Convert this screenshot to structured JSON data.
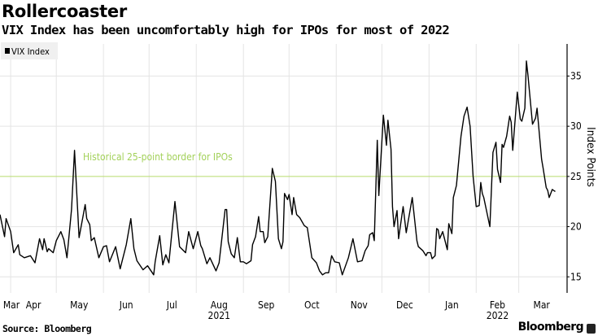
{
  "title": "Rollercoaster",
  "subtitle": "VIX Index has been uncomfortably high for IPOs for most of 2022",
  "source": "Source: Bloomberg",
  "brand": "Bloomberg",
  "colors": {
    "line": "#000000",
    "threshold": "#b8dc6c",
    "annotation": "#a3d15a",
    "grid": "#e4e4e4",
    "legend_bg": "#f0f0f0"
  },
  "chart_data": {
    "type": "line",
    "legend": {
      "entries": [
        "VIX Index"
      ],
      "placement": "top-left"
    },
    "ylabel": "Index Points",
    "yaxis_side": "right",
    "ylim": [
      13.4,
      38.2
    ],
    "yticks": [
      15,
      20,
      25,
      30,
      35
    ],
    "xlim": [
      "2021-03-25",
      "2022-03-29"
    ],
    "grid": true,
    "xtick_labels": [
      {
        "label": "Mar",
        "month": "2021-03"
      },
      {
        "label": "Apr",
        "month": "2021-04"
      },
      {
        "label": "May",
        "month": "2021-05"
      },
      {
        "label": "Jun",
        "month": "2021-06"
      },
      {
        "label": "Jul",
        "month": "2021-07"
      },
      {
        "label": "Aug",
        "month": "2021-08",
        "year": "2021"
      },
      {
        "label": "Sep",
        "month": "2021-09"
      },
      {
        "label": "Oct",
        "month": "2021-10"
      },
      {
        "label": "Nov",
        "month": "2021-11"
      },
      {
        "label": "Dec",
        "month": "2021-12"
      },
      {
        "label": "Jan",
        "month": "2022-01"
      },
      {
        "label": "Feb",
        "month": "2022-02",
        "year": "2022"
      },
      {
        "label": "Mar",
        "month": "2022-03"
      }
    ],
    "annotations": [
      {
        "text": "Historical 25-point border for IPOs",
        "y": 25,
        "type": "hline"
      }
    ],
    "series": [
      {
        "name": "VIX Index",
        "points": [
          [
            "2021-03-25",
            21.2
          ],
          [
            "2021-03-28",
            19.0
          ],
          [
            "2021-03-29",
            20.8
          ],
          [
            "2021-04-01",
            19.5
          ],
          [
            "2021-04-03",
            17.4
          ],
          [
            "2021-04-06",
            18.2
          ],
          [
            "2021-04-07",
            17.2
          ],
          [
            "2021-04-10",
            16.9
          ],
          [
            "2021-04-14",
            17.1
          ],
          [
            "2021-04-17",
            16.4
          ],
          [
            "2021-04-20",
            18.8
          ],
          [
            "2021-04-22",
            17.7
          ],
          [
            "2021-04-23",
            18.8
          ],
          [
            "2021-04-25",
            17.5
          ],
          [
            "2021-04-26",
            17.8
          ],
          [
            "2021-04-29",
            17.4
          ],
          [
            "2021-05-01",
            18.6
          ],
          [
            "2021-05-04",
            19.5
          ],
          [
            "2021-05-06",
            18.7
          ],
          [
            "2021-05-08",
            16.9
          ],
          [
            "2021-05-11",
            21.7
          ],
          [
            "2021-05-13",
            27.6
          ],
          [
            "2021-05-16",
            18.9
          ],
          [
            "2021-05-20",
            22.2
          ],
          [
            "2021-05-21",
            20.8
          ],
          [
            "2021-05-23",
            20.2
          ],
          [
            "2021-05-24",
            18.6
          ],
          [
            "2021-05-26",
            18.9
          ],
          [
            "2021-05-29",
            16.9
          ],
          [
            "2021-06-01",
            18.0
          ],
          [
            "2021-06-03",
            18.1
          ],
          [
            "2021-06-05",
            16.5
          ],
          [
            "2021-06-09",
            18.0
          ],
          [
            "2021-06-12",
            15.8
          ],
          [
            "2021-06-16",
            18.2
          ],
          [
            "2021-06-19",
            20.8
          ],
          [
            "2021-06-21",
            17.8
          ],
          [
            "2021-06-23",
            16.6
          ],
          [
            "2021-06-27",
            15.7
          ],
          [
            "2021-06-30",
            16.1
          ],
          [
            "2021-07-04",
            15.2
          ],
          [
            "2021-07-05",
            16.5
          ],
          [
            "2021-07-08",
            19.1
          ],
          [
            "2021-07-10",
            16.2
          ],
          [
            "2021-07-12",
            17.2
          ],
          [
            "2021-07-14",
            16.4
          ],
          [
            "2021-07-18",
            22.5
          ],
          [
            "2021-07-21",
            18.0
          ],
          [
            "2021-07-25",
            17.4
          ],
          [
            "2021-07-27",
            19.5
          ],
          [
            "2021-07-30",
            17.8
          ],
          [
            "2021-08-02",
            19.5
          ],
          [
            "2021-08-04",
            18.1
          ],
          [
            "2021-08-05",
            17.8
          ],
          [
            "2021-08-08",
            16.3
          ],
          [
            "2021-08-10",
            16.9
          ],
          [
            "2021-08-14",
            15.6
          ],
          [
            "2021-08-16",
            16.4
          ],
          [
            "2021-08-20",
            21.7
          ],
          [
            "2021-08-21",
            21.7
          ],
          [
            "2021-08-22",
            18.5
          ],
          [
            "2021-08-24",
            17.3
          ],
          [
            "2021-08-26",
            16.9
          ],
          [
            "2021-08-28",
            18.9
          ],
          [
            "2021-08-30",
            16.5
          ],
          [
            "2021-09-01",
            16.5
          ],
          [
            "2021-09-03",
            16.3
          ],
          [
            "2021-09-06",
            16.6
          ],
          [
            "2021-09-07",
            18.2
          ],
          [
            "2021-09-09",
            19.0
          ],
          [
            "2021-09-11",
            21.0
          ],
          [
            "2021-09-12",
            19.5
          ],
          [
            "2021-09-14",
            19.5
          ],
          [
            "2021-09-15",
            18.4
          ],
          [
            "2021-09-17",
            19.0
          ],
          [
            "2021-09-20",
            25.8
          ],
          [
            "2021-09-22",
            24.5
          ],
          [
            "2021-09-24",
            18.8
          ],
          [
            "2021-09-26",
            17.8
          ],
          [
            "2021-09-27",
            18.5
          ],
          [
            "2021-09-28",
            23.3
          ],
          [
            "2021-09-30",
            22.7
          ],
          [
            "2021-10-01",
            23.2
          ],
          [
            "2021-10-03",
            21.2
          ],
          [
            "2021-10-04",
            22.9
          ],
          [
            "2021-10-06",
            21.2
          ],
          [
            "2021-10-08",
            20.9
          ],
          [
            "2021-10-11",
            20.1
          ],
          [
            "2021-10-13",
            19.9
          ],
          [
            "2021-10-16",
            16.9
          ],
          [
            "2021-10-19",
            16.4
          ],
          [
            "2021-10-21",
            15.6
          ],
          [
            "2021-10-23",
            15.2
          ],
          [
            "2021-10-25",
            15.4
          ],
          [
            "2021-10-27",
            15.4
          ],
          [
            "2021-10-29",
            17.1
          ],
          [
            "2021-10-31",
            16.5
          ],
          [
            "2021-11-03",
            16.4
          ],
          [
            "2021-11-05",
            15.2
          ],
          [
            "2021-11-09",
            16.9
          ],
          [
            "2021-11-12",
            18.8
          ],
          [
            "2021-11-15",
            16.5
          ],
          [
            "2021-11-18",
            16.6
          ],
          [
            "2021-11-20",
            17.6
          ],
          [
            "2021-11-22",
            18.1
          ],
          [
            "2021-11-23",
            19.2
          ],
          [
            "2021-11-25",
            19.4
          ],
          [
            "2021-11-26",
            18.6
          ],
          [
            "2021-11-28",
            28.6
          ],
          [
            "2021-11-29",
            23.1
          ],
          [
            "2021-12-02",
            31.1
          ],
          [
            "2021-12-04",
            28.1
          ],
          [
            "2021-12-05",
            30.6
          ],
          [
            "2021-12-07",
            27.7
          ],
          [
            "2021-12-08",
            22.0
          ],
          [
            "2021-12-09",
            20.0
          ],
          [
            "2021-12-11",
            21.6
          ],
          [
            "2021-12-12",
            18.8
          ],
          [
            "2021-12-15",
            22.0
          ],
          [
            "2021-12-17",
            19.4
          ],
          [
            "2021-12-21",
            22.9
          ],
          [
            "2021-12-24",
            18.6
          ],
          [
            "2021-12-25",
            18.0
          ],
          [
            "2021-12-28",
            17.6
          ],
          [
            "2021-12-30",
            17.1
          ],
          [
            "2021-12-31",
            17.4
          ],
          [
            "2022-01-02",
            17.4
          ],
          [
            "2022-01-03",
            16.8
          ],
          [
            "2022-01-05",
            17.1
          ],
          [
            "2022-01-06",
            19.8
          ],
          [
            "2022-01-07",
            19.7
          ],
          [
            "2022-01-08",
            18.8
          ],
          [
            "2022-01-10",
            19.5
          ],
          [
            "2022-01-13",
            17.7
          ],
          [
            "2022-01-14",
            20.3
          ],
          [
            "2022-01-16",
            19.3
          ],
          [
            "2022-01-17",
            22.9
          ],
          [
            "2022-01-19",
            24.1
          ],
          [
            "2022-01-22",
            29.0
          ],
          [
            "2022-01-24",
            31.0
          ],
          [
            "2022-01-26",
            31.9
          ],
          [
            "2022-01-28",
            30.0
          ],
          [
            "2022-01-30",
            25.0
          ],
          [
            "2022-02-01",
            22.0
          ],
          [
            "2022-02-03",
            22.1
          ],
          [
            "2022-02-04",
            24.4
          ],
          [
            "2022-02-05",
            23.3
          ],
          [
            "2022-02-06",
            22.9
          ],
          [
            "2022-02-10",
            20.0
          ],
          [
            "2022-02-12",
            27.4
          ],
          [
            "2022-02-14",
            28.4
          ],
          [
            "2022-02-15",
            25.7
          ],
          [
            "2022-02-17",
            24.4
          ],
          [
            "2022-02-18",
            28.2
          ],
          [
            "2022-02-19",
            27.9
          ],
          [
            "2022-02-21",
            29.0
          ],
          [
            "2022-02-23",
            31.0
          ],
          [
            "2022-02-24",
            30.4
          ],
          [
            "2022-02-25",
            27.6
          ],
          [
            "2022-02-28",
            33.4
          ],
          [
            "2022-03-02",
            30.7
          ],
          [
            "2022-03-03",
            30.5
          ],
          [
            "2022-03-05",
            31.8
          ],
          [
            "2022-03-06",
            36.5
          ],
          [
            "2022-03-07",
            35.1
          ],
          [
            "2022-03-10",
            30.2
          ],
          [
            "2022-03-12",
            30.8
          ],
          [
            "2022-03-13",
            31.8
          ],
          [
            "2022-03-16",
            26.7
          ],
          [
            "2022-03-17",
            25.8
          ],
          [
            "2022-03-19",
            23.9
          ],
          [
            "2022-03-20",
            23.6
          ],
          [
            "2022-03-21",
            22.9
          ],
          [
            "2022-03-23",
            23.7
          ],
          [
            "2022-03-25",
            23.5
          ]
        ]
      }
    ]
  }
}
